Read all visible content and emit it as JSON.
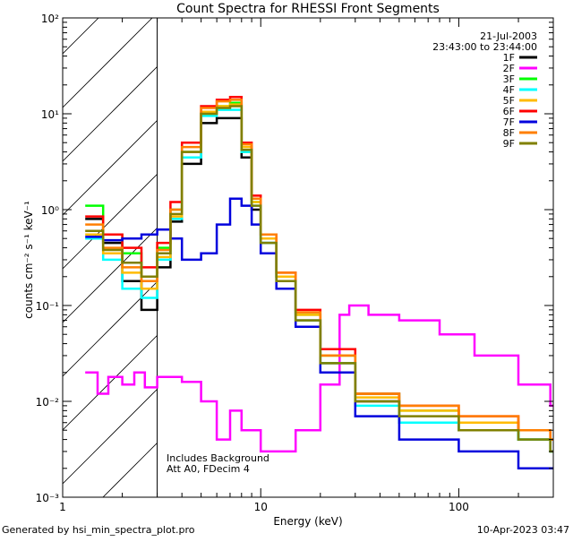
{
  "chart_data": {
    "type": "line",
    "title": "Count Spectra for RHESSI Front Segments",
    "xlabel": "Energy (keV)",
    "ylabel": "counts cm⁻² s⁻¹ keV⁻¹",
    "xscale": "log",
    "yscale": "log",
    "xlim": [
      1,
      300
    ],
    "ylim": [
      0.001,
      100
    ],
    "x_tick_labels": [
      "1",
      "10",
      "100"
    ],
    "y_tick_labels": [
      "10⁻³",
      "10⁻²",
      "10⁻¹",
      "10⁰",
      "10¹",
      "10²"
    ],
    "shaded_region": {
      "description": "attenuator / low-energy exclusion (hatched)",
      "x_range": [
        1,
        3
      ]
    },
    "date": "21-Jul-2003",
    "time_range": "23:43:00 to 23:44:00",
    "annotations": [
      "Includes Background",
      "Att A0, FDecim 4"
    ],
    "footer_left": "Generated by hsi_min_spectra_plot.pro",
    "footer_right": "10-Apr-2023 03:47",
    "legend_position": "top-right",
    "series": [
      {
        "name": "1F",
        "color": "#000000",
        "x": [
          1.3,
          1.6,
          2.0,
          2.5,
          3.0,
          3.5,
          4.0,
          5.0,
          6.0,
          7.0,
          8.0,
          9.0,
          10.0,
          12.0,
          15.0,
          20.0,
          30.0,
          50.0,
          100.0,
          200.0,
          290.0
        ],
        "y": [
          0.8,
          0.45,
          0.18,
          0.09,
          0.25,
          0.75,
          3.0,
          8.0,
          9.0,
          9.0,
          3.5,
          1.0,
          0.45,
          0.2,
          0.07,
          0.025,
          0.01,
          0.006,
          0.005,
          0.004,
          0.003
        ]
      },
      {
        "name": "2F",
        "color": "#ff00ff",
        "x": [
          1.3,
          1.5,
          1.7,
          2.0,
          2.3,
          2.6,
          3.0,
          4.0,
          5.0,
          6.0,
          7.0,
          8.0,
          10.0,
          15.0,
          20.0,
          25.0,
          28.0,
          35.0,
          50.0,
          80.0,
          120.0,
          200.0,
          290.0
        ],
        "y": [
          0.02,
          0.012,
          0.018,
          0.015,
          0.02,
          0.014,
          0.018,
          0.016,
          0.01,
          0.004,
          0.008,
          0.005,
          0.003,
          0.005,
          0.015,
          0.08,
          0.1,
          0.08,
          0.07,
          0.05,
          0.03,
          0.015,
          0.009
        ]
      },
      {
        "name": "3F",
        "color": "#00ff00",
        "x": [
          1.3,
          1.6,
          2.0,
          2.5,
          3.0,
          3.5,
          4.0,
          5.0,
          6.0,
          7.0,
          8.0,
          9.0,
          10.0,
          12.0,
          15.0,
          20.0,
          30.0,
          50.0,
          100.0,
          200.0,
          290.0
        ],
        "y": [
          1.1,
          0.55,
          0.35,
          0.2,
          0.4,
          1.0,
          4.0,
          10.0,
          12.0,
          13.0,
          4.0,
          1.2,
          0.5,
          0.2,
          0.08,
          0.03,
          0.012,
          0.008,
          0.006,
          0.004,
          0.003
        ]
      },
      {
        "name": "4F",
        "color": "#00ffff",
        "x": [
          1.3,
          1.6,
          2.0,
          2.5,
          3.0,
          3.5,
          4.0,
          5.0,
          6.0,
          7.0,
          8.0,
          9.0,
          10.0,
          12.0,
          15.0,
          20.0,
          30.0,
          50.0,
          100.0,
          200.0,
          290.0
        ],
        "y": [
          0.5,
          0.3,
          0.15,
          0.12,
          0.3,
          0.8,
          3.5,
          9.5,
          11.0,
          11.0,
          4.0,
          1.1,
          0.45,
          0.18,
          0.07,
          0.025,
          0.009,
          0.006,
          0.005,
          0.004,
          0.003
        ]
      },
      {
        "name": "5F",
        "color": "#ffbb00",
        "x": [
          1.3,
          1.6,
          2.0,
          2.5,
          3.0,
          3.5,
          4.0,
          5.0,
          6.0,
          7.0,
          8.0,
          9.0,
          10.0,
          12.0,
          15.0,
          20.0,
          30.0,
          50.0,
          100.0,
          200.0,
          290.0
        ],
        "y": [
          0.55,
          0.35,
          0.22,
          0.15,
          0.32,
          0.85,
          4.0,
          10.5,
          12.0,
          12.5,
          4.5,
          1.2,
          0.5,
          0.2,
          0.08,
          0.03,
          0.011,
          0.008,
          0.006,
          0.005,
          0.004
        ]
      },
      {
        "name": "6F",
        "color": "#ff0000",
        "x": [
          1.3,
          1.6,
          2.0,
          2.5,
          3.0,
          3.5,
          4.0,
          5.0,
          6.0,
          7.0,
          8.0,
          9.0,
          10.0,
          12.0,
          15.0,
          20.0,
          30.0,
          50.0,
          100.0,
          200.0,
          290.0
        ],
        "y": [
          0.85,
          0.55,
          0.4,
          0.25,
          0.45,
          1.2,
          5.0,
          12.0,
          14.0,
          15.0,
          5.0,
          1.4,
          0.55,
          0.22,
          0.09,
          0.035,
          0.012,
          0.009,
          0.007,
          0.005,
          0.004
        ]
      },
      {
        "name": "7F",
        "color": "#0000dd",
        "x": [
          1.3,
          1.6,
          2.0,
          2.5,
          3.0,
          3.5,
          4.0,
          5.0,
          6.0,
          7.0,
          8.0,
          9.0,
          10.0,
          12.0,
          15.0,
          20.0,
          30.0,
          50.0,
          100.0,
          200.0,
          290.0
        ],
        "y": [
          0.52,
          0.48,
          0.5,
          0.55,
          0.62,
          0.5,
          0.3,
          0.35,
          0.7,
          1.3,
          1.1,
          0.7,
          0.35,
          0.15,
          0.06,
          0.02,
          0.007,
          0.004,
          0.003,
          0.002,
          0.002
        ]
      },
      {
        "name": "8F",
        "color": "#ff7f00",
        "x": [
          1.3,
          1.6,
          2.0,
          2.5,
          3.0,
          3.5,
          4.0,
          5.0,
          6.0,
          7.0,
          8.0,
          9.0,
          10.0,
          12.0,
          15.0,
          20.0,
          30.0,
          50.0,
          100.0,
          200.0,
          290.0
        ],
        "y": [
          0.7,
          0.4,
          0.25,
          0.18,
          0.38,
          1.0,
          4.5,
          11.5,
          13.5,
          14.0,
          4.8,
          1.3,
          0.55,
          0.22,
          0.085,
          0.03,
          0.012,
          0.009,
          0.007,
          0.005,
          0.004
        ]
      },
      {
        "name": "9F",
        "color": "#808000",
        "x": [
          1.3,
          1.6,
          2.0,
          2.5,
          3.0,
          3.5,
          4.0,
          5.0,
          6.0,
          7.0,
          8.0,
          9.0,
          10.0,
          12.0,
          15.0,
          20.0,
          30.0,
          50.0,
          100.0,
          200.0,
          290.0
        ],
        "y": [
          0.6,
          0.38,
          0.28,
          0.2,
          0.35,
          0.9,
          4.0,
          10.0,
          11.5,
          12.0,
          4.2,
          1.1,
          0.45,
          0.18,
          0.07,
          0.025,
          0.01,
          0.007,
          0.005,
          0.004,
          0.003
        ]
      }
    ]
  }
}
